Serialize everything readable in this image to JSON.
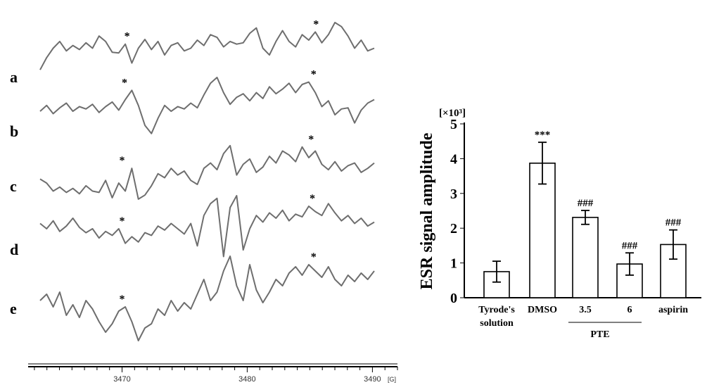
{
  "chart_data": [
    {
      "type": "line",
      "panel": "esr-spectra",
      "traces": [
        {
          "label": "a",
          "marker_x": [
            3470.4,
            3485.5
          ],
          "y": [
            0.3,
            0.48,
            0.62,
            0.72,
            0.58,
            0.66,
            0.6,
            0.7,
            0.62,
            0.8,
            0.72,
            0.56,
            0.55,
            0.68,
            0.4,
            0.62,
            0.75,
            0.6,
            0.72,
            0.52,
            0.66,
            0.7,
            0.58,
            0.62,
            0.74,
            0.66,
            0.82,
            0.78,
            0.64,
            0.72,
            0.68,
            0.7,
            0.84,
            0.92,
            0.62,
            0.52,
            0.72,
            0.88,
            0.72,
            0.64,
            0.82,
            0.74,
            0.86,
            0.7,
            0.82,
            1.0,
            0.94,
            0.8,
            0.62,
            0.74,
            0.58,
            0.62
          ]
        },
        {
          "label": "b",
          "marker_x": [
            3470.2,
            3485.3
          ],
          "y": [
            0.42,
            0.52,
            0.38,
            0.48,
            0.56,
            0.42,
            0.5,
            0.46,
            0.54,
            0.4,
            0.5,
            0.58,
            0.44,
            0.62,
            0.78,
            0.52,
            0.18,
            0.04,
            0.3,
            0.52,
            0.42,
            0.5,
            0.46,
            0.56,
            0.48,
            0.7,
            0.9,
            1.0,
            0.74,
            0.54,
            0.66,
            0.72,
            0.6,
            0.74,
            0.64,
            0.84,
            0.72,
            0.8,
            0.9,
            0.74,
            0.88,
            0.92,
            0.74,
            0.5,
            0.6,
            0.36,
            0.46,
            0.48,
            0.22,
            0.44,
            0.56,
            0.62
          ]
        },
        {
          "label": "c",
          "marker_x": [
            3470.0,
            3485.1
          ],
          "y": [
            0.48,
            0.42,
            0.3,
            0.36,
            0.28,
            0.34,
            0.26,
            0.38,
            0.3,
            0.28,
            0.46,
            0.2,
            0.42,
            0.3,
            0.64,
            0.18,
            0.24,
            0.38,
            0.56,
            0.5,
            0.64,
            0.54,
            0.6,
            0.46,
            0.4,
            0.64,
            0.72,
            0.62,
            0.86,
            0.98,
            0.54,
            0.7,
            0.78,
            0.58,
            0.66,
            0.82,
            0.72,
            0.9,
            0.84,
            0.74,
            0.96,
            0.8,
            0.9,
            0.7,
            0.62,
            0.74,
            0.6,
            0.68,
            0.72,
            0.58,
            0.64,
            0.72
          ]
        },
        {
          "label": "d",
          "marker_x": [
            3470.0,
            3485.2
          ],
          "y": [
            0.58,
            0.5,
            0.62,
            0.46,
            0.54,
            0.66,
            0.52,
            0.44,
            0.5,
            0.36,
            0.46,
            0.4,
            0.5,
            0.28,
            0.38,
            0.3,
            0.44,
            0.4,
            0.54,
            0.48,
            0.58,
            0.5,
            0.42,
            0.58,
            0.24,
            0.7,
            0.88,
            0.96,
            0.08,
            0.82,
            1.0,
            0.18,
            0.5,
            0.7,
            0.6,
            0.74,
            0.66,
            0.78,
            0.62,
            0.72,
            0.68,
            0.84,
            0.76,
            0.7,
            0.88,
            0.74,
            0.62,
            0.7,
            0.58,
            0.66,
            0.54,
            0.6
          ]
        },
        {
          "label": "e",
          "marker_x": [
            3470.0,
            3485.3
          ],
          "y": [
            0.52,
            0.58,
            0.46,
            0.6,
            0.38,
            0.48,
            0.36,
            0.52,
            0.44,
            0.32,
            0.22,
            0.3,
            0.42,
            0.46,
            0.32,
            0.14,
            0.26,
            0.3,
            0.44,
            0.38,
            0.52,
            0.42,
            0.5,
            0.44,
            0.58,
            0.72,
            0.52,
            0.6,
            0.8,
            0.94,
            0.66,
            0.52,
            0.86,
            0.62,
            0.5,
            0.6,
            0.72,
            0.66,
            0.78,
            0.84,
            0.76,
            0.86,
            0.8,
            0.74,
            0.84,
            0.72,
            0.66,
            0.76,
            0.7,
            0.78,
            0.72,
            0.8
          ]
        }
      ],
      "marker": "*",
      "x_range": [
        3462.5,
        3492
      ],
      "x_ticks": [
        3470,
        3480,
        3490
      ],
      "x_unit": "[G]"
    },
    {
      "type": "bar",
      "panel": "esr-amplitude",
      "categories": [
        "Tyrode's solution",
        "DMSO",
        "3.5",
        "6",
        "aspirin"
      ],
      "values": [
        0.75,
        3.87,
        2.31,
        0.97,
        1.53
      ],
      "errors": [
        0.3,
        0.6,
        0.2,
        0.32,
        0.42
      ],
      "annotations": [
        "",
        "***",
        "###",
        "###",
        "###"
      ],
      "group_label": "PTE",
      "group_members": [
        "3.5",
        "6"
      ],
      "ylabel": "ESR signal amplitude",
      "unit_label": "[×10³]",
      "ylim": [
        0,
        5
      ],
      "yticks": [
        0,
        1,
        2,
        3,
        4,
        5
      ]
    }
  ]
}
